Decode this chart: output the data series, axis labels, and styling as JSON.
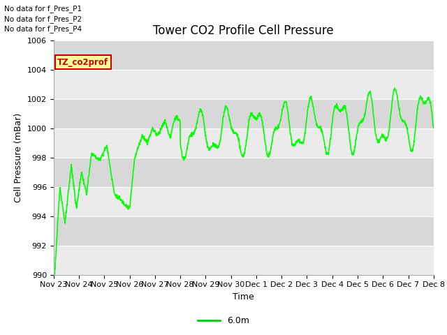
{
  "title": "Tower CO2 Profile Cell Pressure",
  "xlabel": "Time",
  "ylabel": "Cell Pressure (mBar)",
  "ylim": [
    990,
    1006
  ],
  "yticks": [
    990,
    992,
    994,
    996,
    998,
    1000,
    1002,
    1004,
    1006
  ],
  "xtick_labels": [
    "Nov 23",
    "Nov 24",
    "Nov 25",
    "Nov 26",
    "Nov 27",
    "Nov 28",
    "Nov 29",
    "Nov 30",
    "Dec 1",
    "Dec 2",
    "Dec 3",
    "Dec 4",
    "Dec 5",
    "Dec 6",
    "Dec 7",
    "Dec 8"
  ],
  "line_color": "#00ff00",
  "line_width": 1.2,
  "legend_label": "6.0m",
  "legend_line_color": "#00cc00",
  "no_data_texts": [
    "No data for f_Pres_P1",
    "No data for f_Pres_P2",
    "No data for f_Pres_P4"
  ],
  "annotation_text": "TZ_co2prof",
  "annotation_bg": "#ffff99",
  "annotation_border": "#cc0000",
  "fig_bg_color": "#ffffff",
  "plot_bg_color": "#e8e8e8",
  "band_color_light": "#ebebeb",
  "band_color_dark": "#d8d8d8",
  "title_fontsize": 12,
  "axis_fontsize": 9,
  "tick_fontsize": 8
}
